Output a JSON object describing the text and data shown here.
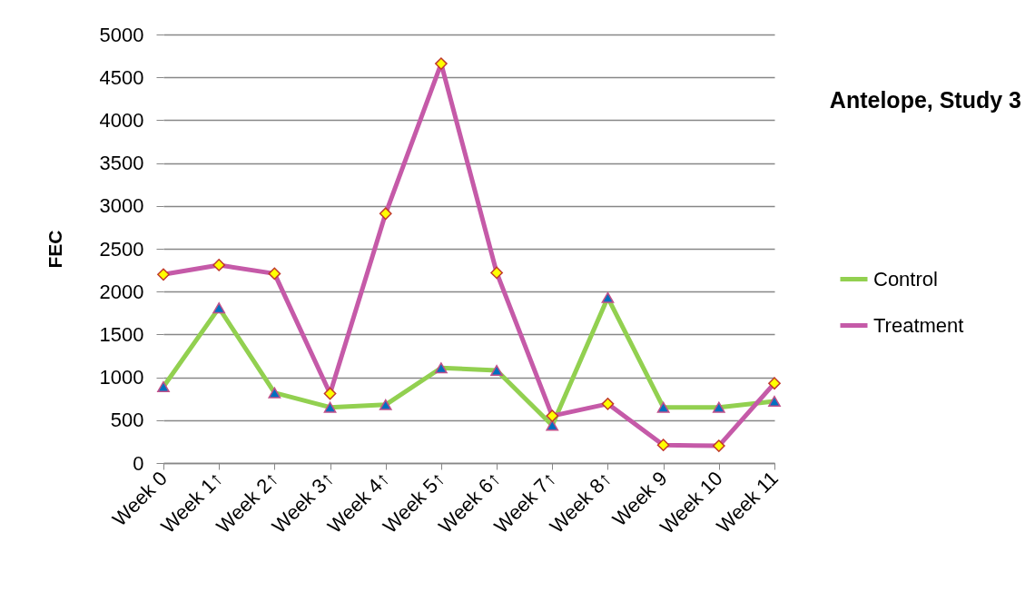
{
  "chart_data": {
    "type": "line",
    "title": "Antelope, Study 3",
    "ylabel": "FEC",
    "categories": [
      "Week 0",
      "Week 1↑",
      "Week 2↑",
      "Week 3↑",
      "Week 4↑",
      "Week 5↑",
      "Week 6↑",
      "Week 7↑",
      "Week 8↑",
      "Week 9",
      "Week 10",
      "Week 11"
    ],
    "series": [
      {
        "name": "Control",
        "color": "#92d050",
        "marker": "triangle",
        "values": [
          890,
          1810,
          820,
          650,
          680,
          1110,
          1080,
          440,
          1930,
          650,
          650,
          720
        ]
      },
      {
        "name": "Treatment",
        "color": "#c55aa8",
        "marker": "diamond",
        "values": [
          2200,
          2310,
          2210,
          810,
          2910,
          4660,
          2220,
          550,
          690,
          210,
          200,
          930
        ]
      }
    ],
    "ylim": [
      0,
      5000
    ],
    "yticks": [
      0,
      500,
      1000,
      1500,
      2000,
      2500,
      3000,
      3500,
      4000,
      4500,
      5000
    ],
    "grid": "y",
    "legend": "right",
    "line_style": "solid"
  }
}
